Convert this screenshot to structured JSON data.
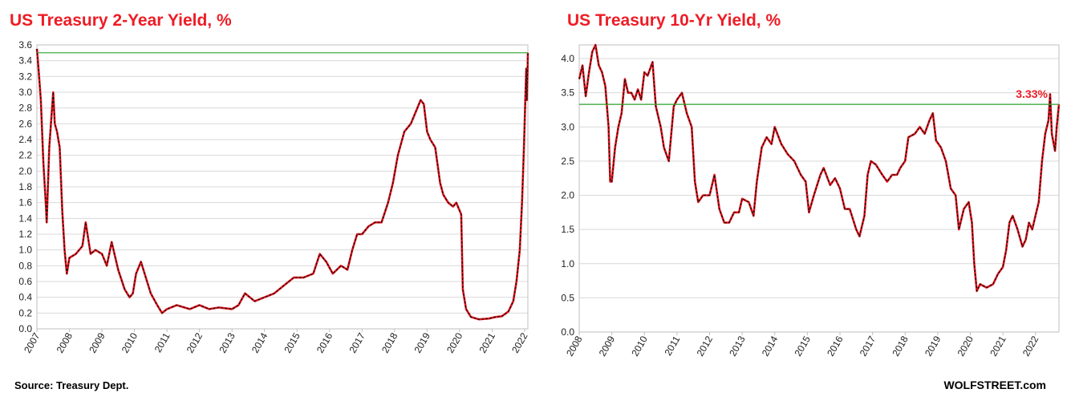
{
  "footer": {
    "source": "Source: Treasury Dept.",
    "brand": "WOLFSTREET.com"
  },
  "chart_data": [
    {
      "type": "line",
      "title": "US Treasury 2-Year Yield, %",
      "xlabel": "",
      "ylabel": "",
      "ylim": [
        0,
        3.6
      ],
      "xlim": [
        2007.0,
        2022.1
      ],
      "y_ticks": [
        0.0,
        0.2,
        0.4,
        0.6,
        0.8,
        1.0,
        1.2,
        1.4,
        1.6,
        1.8,
        2.0,
        2.2,
        2.4,
        2.6,
        2.8,
        3.0,
        3.2,
        3.4,
        3.6
      ],
      "x_ticks": [
        "2007",
        "2008",
        "2009",
        "2010",
        "2011",
        "2012",
        "2013",
        "2014",
        "2015",
        "2016",
        "2017",
        "2018",
        "2019",
        "2020",
        "2021",
        "2022"
      ],
      "grid": true,
      "reference_line": {
        "value": 3.5,
        "color": "#2ca02c"
      },
      "series": [
        {
          "color": "#e8141c",
          "points": [
            [
              2007.0,
              3.55
            ],
            [
              2007.05,
              3.3
            ],
            [
              2007.12,
              2.9
            ],
            [
              2007.2,
              2.1
            ],
            [
              2007.28,
              1.55
            ],
            [
              2007.3,
              1.35
            ],
            [
              2007.38,
              2.3
            ],
            [
              2007.45,
              2.7
            ],
            [
              2007.5,
              3.0
            ],
            [
              2007.55,
              2.6
            ],
            [
              2007.62,
              2.5
            ],
            [
              2007.7,
              2.3
            ],
            [
              2007.78,
              1.5
            ],
            [
              2007.85,
              1.0
            ],
            [
              2007.92,
              0.7
            ],
            [
              2008.0,
              0.9
            ],
            [
              2008.2,
              0.95
            ],
            [
              2008.4,
              1.05
            ],
            [
              2008.5,
              1.35
            ],
            [
              2008.65,
              0.95
            ],
            [
              2008.8,
              1.0
            ],
            [
              2009.0,
              0.95
            ],
            [
              2009.15,
              0.8
            ],
            [
              2009.3,
              1.1
            ],
            [
              2009.5,
              0.75
            ],
            [
              2009.7,
              0.5
            ],
            [
              2009.85,
              0.4
            ],
            [
              2009.95,
              0.45
            ],
            [
              2010.05,
              0.7
            ],
            [
              2010.2,
              0.85
            ],
            [
              2010.35,
              0.65
            ],
            [
              2010.5,
              0.45
            ],
            [
              2010.7,
              0.3
            ],
            [
              2010.85,
              0.2
            ],
            [
              2011.0,
              0.25
            ],
            [
              2011.3,
              0.3
            ],
            [
              2011.7,
              0.25
            ],
            [
              2012.0,
              0.3
            ],
            [
              2012.3,
              0.25
            ],
            [
              2012.6,
              0.27
            ],
            [
              2013.0,
              0.25
            ],
            [
              2013.2,
              0.3
            ],
            [
              2013.4,
              0.45
            ],
            [
              2013.7,
              0.35
            ],
            [
              2014.0,
              0.4
            ],
            [
              2014.3,
              0.45
            ],
            [
              2014.6,
              0.55
            ],
            [
              2014.9,
              0.65
            ],
            [
              2015.2,
              0.65
            ],
            [
              2015.5,
              0.7
            ],
            [
              2015.7,
              0.95
            ],
            [
              2015.9,
              0.85
            ],
            [
              2016.1,
              0.7
            ],
            [
              2016.35,
              0.8
            ],
            [
              2016.55,
              0.75
            ],
            [
              2016.7,
              1.0
            ],
            [
              2016.85,
              1.2
            ],
            [
              2017.0,
              1.2
            ],
            [
              2017.2,
              1.3
            ],
            [
              2017.4,
              1.35
            ],
            [
              2017.6,
              1.35
            ],
            [
              2017.8,
              1.6
            ],
            [
              2017.95,
              1.85
            ],
            [
              2018.1,
              2.2
            ],
            [
              2018.3,
              2.5
            ],
            [
              2018.5,
              2.6
            ],
            [
              2018.65,
              2.75
            ],
            [
              2018.8,
              2.9
            ],
            [
              2018.9,
              2.85
            ],
            [
              2019.0,
              2.5
            ],
            [
              2019.1,
              2.4
            ],
            [
              2019.25,
              2.3
            ],
            [
              2019.4,
              1.85
            ],
            [
              2019.5,
              1.7
            ],
            [
              2019.65,
              1.6
            ],
            [
              2019.8,
              1.55
            ],
            [
              2019.9,
              1.6
            ],
            [
              2020.05,
              1.45
            ],
            [
              2020.1,
              0.5
            ],
            [
              2020.2,
              0.25
            ],
            [
              2020.35,
              0.15
            ],
            [
              2020.6,
              0.12
            ],
            [
              2020.9,
              0.13
            ],
            [
              2021.1,
              0.15
            ],
            [
              2021.3,
              0.16
            ],
            [
              2021.5,
              0.22
            ],
            [
              2021.65,
              0.35
            ],
            [
              2021.75,
              0.6
            ],
            [
              2021.85,
              1.0
            ],
            [
              2021.92,
              1.6
            ],
            [
              2021.98,
              2.3
            ],
            [
              2022.02,
              2.9
            ],
            [
              2022.05,
              3.3
            ],
            [
              2022.07,
              2.9
            ],
            [
              2022.09,
              3.25
            ],
            [
              2022.1,
              3.5
            ]
          ]
        }
      ]
    },
    {
      "type": "line",
      "title": "US Treasury 10-Yr Yield, %",
      "xlabel": "",
      "ylabel": "",
      "ylim": [
        0.0,
        4.2
      ],
      "xlim": [
        2008.0,
        2022.72
      ],
      "y_ticks": [
        0.0,
        0.5,
        1.0,
        1.5,
        2.0,
        2.5,
        3.0,
        3.5,
        4.0
      ],
      "x_ticks": [
        "2008",
        "2009",
        "2010",
        "2011",
        "2012",
        "2013",
        "2014",
        "2015",
        "2016",
        "2017",
        "2018",
        "2019",
        "2020",
        "2021",
        "2022"
      ],
      "grid": true,
      "reference_line": {
        "value": 3.33,
        "label": "3.33%",
        "color": "#2ca02c"
      },
      "series": [
        {
          "color": "#e8141c",
          "points": [
            [
              2008.0,
              3.7
            ],
            [
              2008.1,
              3.9
            ],
            [
              2008.2,
              3.45
            ],
            [
              2008.3,
              3.8
            ],
            [
              2008.4,
              4.1
            ],
            [
              2008.5,
              4.2
            ],
            [
              2008.6,
              3.9
            ],
            [
              2008.7,
              3.8
            ],
            [
              2008.8,
              3.6
            ],
            [
              2008.9,
              3.0
            ],
            [
              2008.95,
              2.2
            ],
            [
              2009.0,
              2.2
            ],
            [
              2009.1,
              2.7
            ],
            [
              2009.2,
              3.0
            ],
            [
              2009.3,
              3.2
            ],
            [
              2009.4,
              3.7
            ],
            [
              2009.5,
              3.5
            ],
            [
              2009.6,
              3.5
            ],
            [
              2009.7,
              3.4
            ],
            [
              2009.8,
              3.55
            ],
            [
              2009.9,
              3.4
            ],
            [
              2010.0,
              3.8
            ],
            [
              2010.1,
              3.75
            ],
            [
              2010.25,
              3.95
            ],
            [
              2010.35,
              3.3
            ],
            [
              2010.5,
              3.0
            ],
            [
              2010.6,
              2.7
            ],
            [
              2010.75,
              2.5
            ],
            [
              2010.9,
              3.3
            ],
            [
              2011.0,
              3.4
            ],
            [
              2011.15,
              3.5
            ],
            [
              2011.3,
              3.2
            ],
            [
              2011.45,
              3.0
            ],
            [
              2011.55,
              2.2
            ],
            [
              2011.65,
              1.9
            ],
            [
              2011.8,
              2.0
            ],
            [
              2012.0,
              2.0
            ],
            [
              2012.15,
              2.3
            ],
            [
              2012.3,
              1.8
            ],
            [
              2012.45,
              1.6
            ],
            [
              2012.6,
              1.6
            ],
            [
              2012.75,
              1.75
            ],
            [
              2012.9,
              1.75
            ],
            [
              2013.0,
              1.95
            ],
            [
              2013.2,
              1.9
            ],
            [
              2013.35,
              1.7
            ],
            [
              2013.45,
              2.2
            ],
            [
              2013.6,
              2.7
            ],
            [
              2013.75,
              2.85
            ],
            [
              2013.9,
              2.75
            ],
            [
              2014.0,
              3.0
            ],
            [
              2014.2,
              2.75
            ],
            [
              2014.4,
              2.6
            ],
            [
              2014.6,
              2.5
            ],
            [
              2014.8,
              2.3
            ],
            [
              2014.95,
              2.2
            ],
            [
              2015.05,
              1.75
            ],
            [
              2015.2,
              2.0
            ],
            [
              2015.4,
              2.3
            ],
            [
              2015.5,
              2.4
            ],
            [
              2015.7,
              2.15
            ],
            [
              2015.85,
              2.25
            ],
            [
              2016.0,
              2.1
            ],
            [
              2016.15,
              1.8
            ],
            [
              2016.3,
              1.8
            ],
            [
              2016.5,
              1.5
            ],
            [
              2016.6,
              1.4
            ],
            [
              2016.75,
              1.7
            ],
            [
              2016.85,
              2.3
            ],
            [
              2016.95,
              2.5
            ],
            [
              2017.1,
              2.45
            ],
            [
              2017.3,
              2.3
            ],
            [
              2017.45,
              2.2
            ],
            [
              2017.6,
              2.3
            ],
            [
              2017.75,
              2.3
            ],
            [
              2017.85,
              2.4
            ],
            [
              2018.0,
              2.5
            ],
            [
              2018.1,
              2.85
            ],
            [
              2018.3,
              2.9
            ],
            [
              2018.45,
              3.0
            ],
            [
              2018.6,
              2.9
            ],
            [
              2018.75,
              3.1
            ],
            [
              2018.85,
              3.2
            ],
            [
              2018.95,
              2.8
            ],
            [
              2019.1,
              2.7
            ],
            [
              2019.25,
              2.5
            ],
            [
              2019.4,
              2.1
            ],
            [
              2019.55,
              2.0
            ],
            [
              2019.65,
              1.5
            ],
            [
              2019.8,
              1.8
            ],
            [
              2019.95,
              1.9
            ],
            [
              2020.05,
              1.6
            ],
            [
              2020.12,
              1.0
            ],
            [
              2020.2,
              0.6
            ],
            [
              2020.3,
              0.7
            ],
            [
              2020.5,
              0.65
            ],
            [
              2020.7,
              0.7
            ],
            [
              2020.85,
              0.85
            ],
            [
              2021.0,
              0.95
            ],
            [
              2021.1,
              1.2
            ],
            [
              2021.2,
              1.6
            ],
            [
              2021.3,
              1.7
            ],
            [
              2021.45,
              1.5
            ],
            [
              2021.6,
              1.25
            ],
            [
              2021.7,
              1.35
            ],
            [
              2021.8,
              1.6
            ],
            [
              2021.9,
              1.5
            ],
            [
              2022.0,
              1.7
            ],
            [
              2022.1,
              1.9
            ],
            [
              2022.2,
              2.5
            ],
            [
              2022.3,
              2.9
            ],
            [
              2022.4,
              3.1
            ],
            [
              2022.45,
              3.48
            ],
            [
              2022.5,
              2.9
            ],
            [
              2022.6,
              2.65
            ],
            [
              2022.65,
              3.0
            ],
            [
              2022.72,
              3.33
            ]
          ]
        }
      ]
    }
  ]
}
